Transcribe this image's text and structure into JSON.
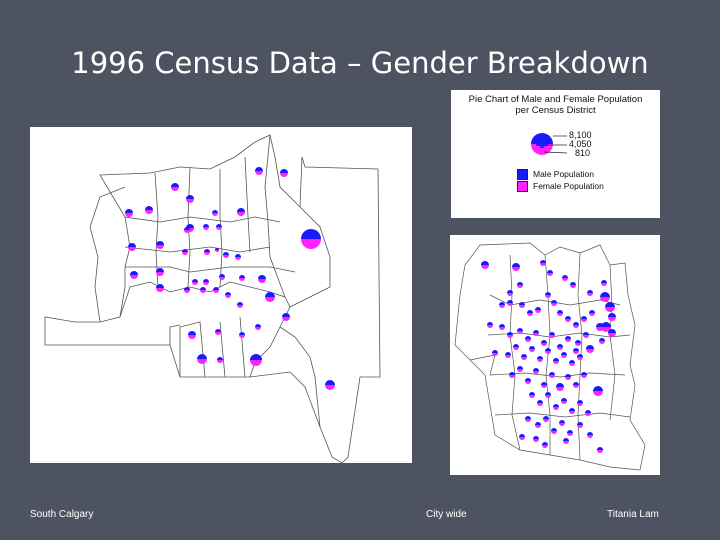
{
  "title": "1996 Census Data – Gender Breakdown",
  "legend": {
    "title_line1": "Pie Chart of Male and Female Population",
    "title_line2": "per Census District",
    "size_values": [
      "8,100",
      "4,050",
      "810"
    ],
    "items": [
      {
        "label": "Male Population",
        "color": "#1a1aff"
      },
      {
        "label": "Female Population",
        "color": "#ff22ff"
      }
    ]
  },
  "footer": {
    "left": "South Calgary",
    "center": "City wide",
    "right": "Titania Lam"
  },
  "colors": {
    "background": "#4e5361",
    "male": "#1a1aff",
    "female": "#ff22ff",
    "boundary": "#444444"
  }
}
